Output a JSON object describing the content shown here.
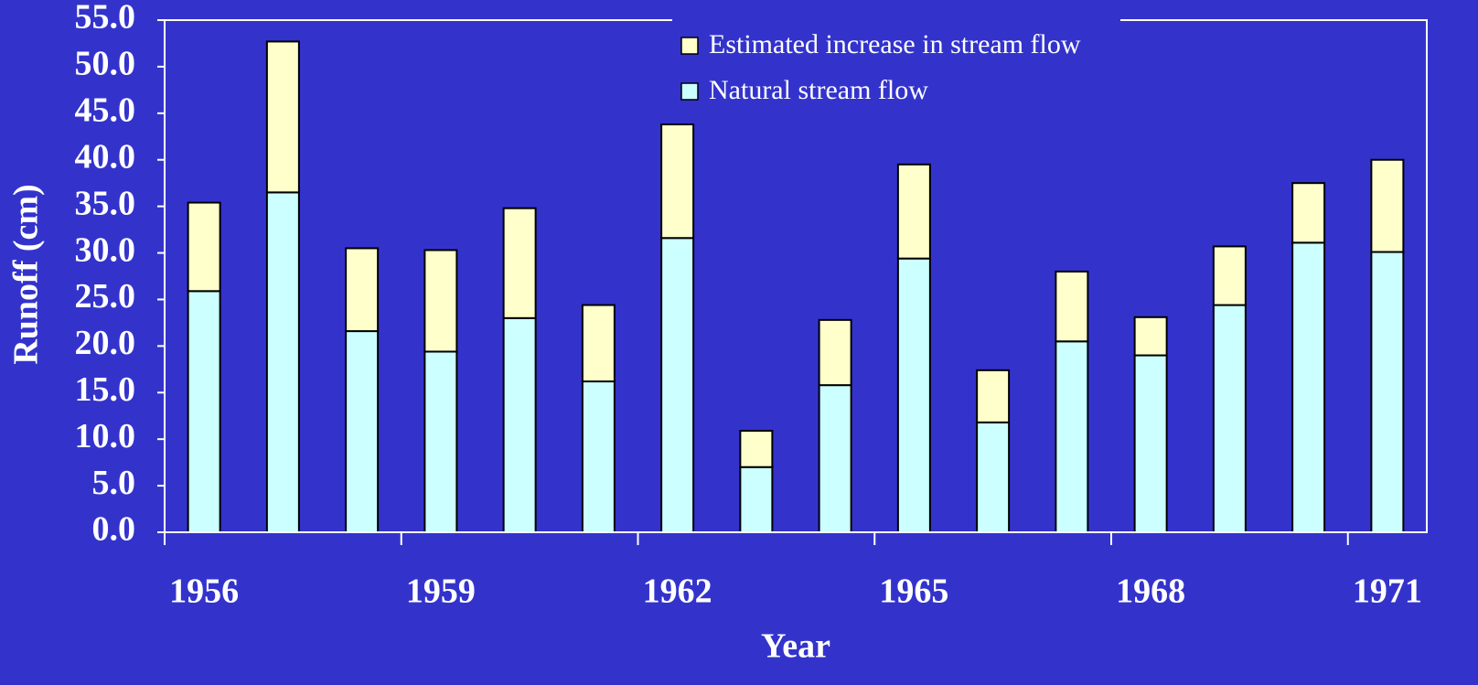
{
  "chart_data": {
    "type": "stacked-bar",
    "x_label": "Year",
    "y_label": "Runoff (cm)",
    "categories": [
      "1956",
      null,
      null,
      "1959",
      null,
      null,
      "1962",
      null,
      null,
      "1965",
      null,
      null,
      "1968",
      null,
      null,
      "1971"
    ],
    "series": [
      {
        "name": "Natural stream flow",
        "color": "#ccffff",
        "values": [
          25.9,
          36.5,
          21.6,
          19.4,
          23.0,
          16.2,
          31.6,
          7.0,
          15.8,
          29.4,
          11.8,
          20.5,
          19.0,
          24.4,
          31.1,
          30.1
        ]
      },
      {
        "name": "Estimated increase in stream flow",
        "color": "#ffffcc",
        "values": [
          9.5,
          16.2,
          8.9,
          10.9,
          11.8,
          8.2,
          12.2,
          3.9,
          7.0,
          10.1,
          5.6,
          7.5,
          4.1,
          6.3,
          6.4,
          9.9
        ]
      }
    ],
    "ylim": [
      0,
      55
    ],
    "yticks": [
      {
        "value": 0,
        "label": "0.0"
      },
      {
        "value": 5,
        "label": "5.0"
      },
      {
        "value": 10,
        "label": "10.0"
      },
      {
        "value": 15,
        "label": "15.0"
      },
      {
        "value": 20,
        "label": "20.0"
      },
      {
        "value": 25,
        "label": "25.0"
      },
      {
        "value": 30,
        "label": "30.0"
      },
      {
        "value": 35,
        "label": "35.0"
      },
      {
        "value": 40,
        "label": "40.0"
      },
      {
        "value": 45,
        "label": "45.0"
      },
      {
        "value": 50,
        "label": "50.0"
      },
      {
        "value": 55,
        "label": "55.0"
      }
    ],
    "grid": false,
    "legend": "top",
    "background": "#3333cc"
  }
}
